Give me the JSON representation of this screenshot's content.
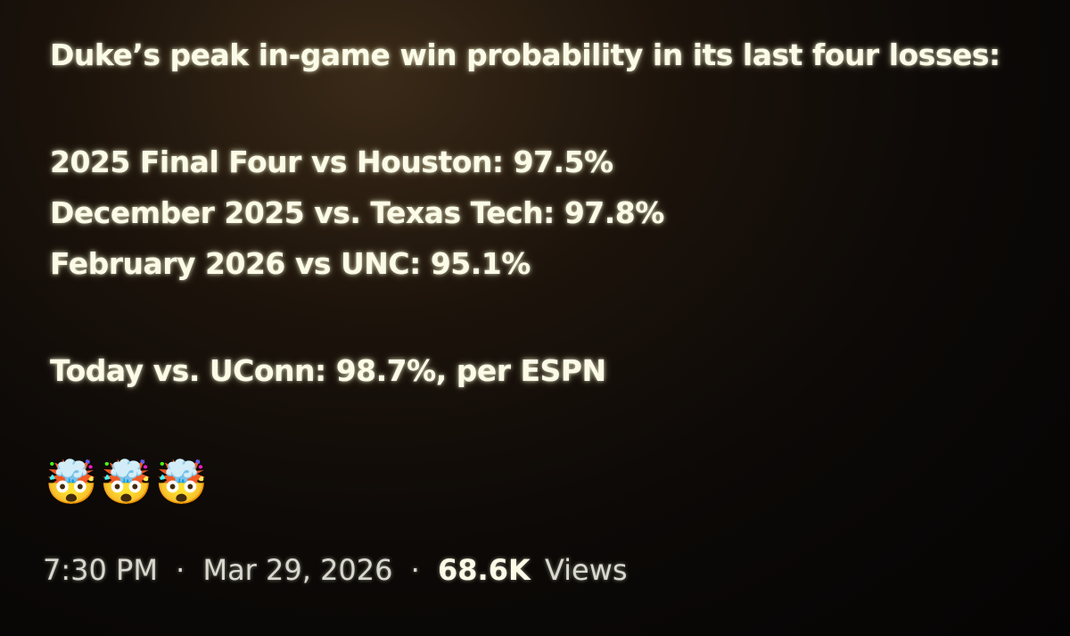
{
  "post": {
    "heading": "Duke’s peak in-game win probability in its last four losses:",
    "lines": [
      "2025 Final Four vs Houston: 97.5%",
      "December 2025 vs. Texas Tech: 97.8%",
      "February 2026 vs UNC: 95.1%"
    ],
    "closing": "Today vs. UConn: 98.7%, per ESPN",
    "emoji": "🤯🤯🤯",
    "meta": {
      "time": "7:30 PM",
      "separator": "·",
      "date": "Mar 29, 2026",
      "views": "68.6K",
      "views_label": "Views"
    }
  }
}
